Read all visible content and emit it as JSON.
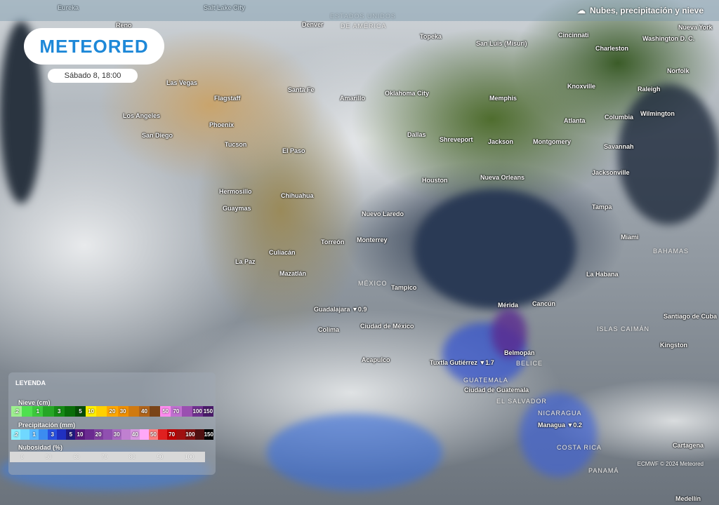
{
  "header": {
    "layer_title": "Nubes, precipitación y nieve",
    "layer_icon": "cloud-rain-icon"
  },
  "logo": "METEORED",
  "date": "Sábado 8, 18:00",
  "credit": "ECMWF © 2024 Meteored",
  "cities": [
    "Eureka",
    "Salt Lake City",
    "Denver",
    "Reno",
    "Topeka",
    "San Luis (Misuri)",
    "Cincinnati",
    "Washington D. C.",
    "Charleston",
    "Norfolk",
    "Nueva York",
    "Las Vegas",
    "Santa Fe",
    "Flagstaff",
    "Amarillo",
    "Oklahoma City",
    "Memphis",
    "Knoxville",
    "Raleigh",
    "Los Angeles",
    "Phoenix",
    "Atlanta",
    "Columbia",
    "Wilmington",
    "San Diego",
    "Dallas",
    "Shreveport",
    "Jackson",
    "Montgomery",
    "Savannah",
    "Tucson",
    "El Paso",
    "Jacksonville",
    "Houston",
    "Nueva Orleans",
    "Hermosillo",
    "Chihuahua",
    "Guaymas",
    "Nuevo Laredo",
    "Tampa",
    "Torreón",
    "Monterrey",
    "Miami",
    "Culiacán",
    "La Paz",
    "Mazatlán",
    "Tampico",
    "La Habana",
    "Mérida",
    "Cancún",
    "Guadalajara ▼0.9",
    "Santiago de Cuba",
    "Colima",
    "Ciudad de México",
    "Kingston",
    "Belmopán",
    "Acapulco",
    "Tuxtla Gutiérrez ▼1.7",
    "Ciudad de Guatemala",
    "Managua ▼0.2",
    "Cartagena",
    "Medellín"
  ],
  "countries": [
    "ESTADOS UNIDOS",
    "DE AMÉRICA",
    "MÉXICO",
    "ISLAS CAIMÁN",
    "BELICE",
    "GUATEMALA",
    "EL SALVADOR",
    "NICARAGUA",
    "COSTA RICA",
    "PANAMÁ",
    "BAHAMAS"
  ],
  "legend": {
    "title": "LEYENDA",
    "snow": {
      "label": "Nieve (cm)",
      "cells": [
        ".2",
        "",
        "1",
        "",
        "3",
        "",
        "5",
        "10",
        "",
        "20",
        "30",
        "",
        "40",
        "",
        "50",
        "70",
        "",
        "100",
        "150"
      ],
      "colors": [
        "#9df08f",
        "#4fe04f",
        "#3cc83c",
        "#26a626",
        "#158a15",
        "#0a6d0a",
        "#064e06",
        "#fff000",
        "#ffd000",
        "#ffa800",
        "#f09000",
        "#d07a10",
        "#b0641a",
        "#7a4418",
        "#ff8cf0",
        "#c070d0",
        "#9a50b0",
        "#703090",
        "#4a1a6a"
      ]
    },
    "precip": {
      "label": "Precipitación (mm)",
      "cells": [
        ".2",
        "",
        "1",
        "",
        "3",
        "",
        "5",
        "10",
        "",
        "20",
        "",
        "30",
        "",
        "40",
        "",
        "50",
        "",
        "70",
        "",
        "100",
        "",
        "150"
      ],
      "colors": [
        "#8ef0ff",
        "#70d8ff",
        "#58b8ff",
        "#3c8cf0",
        "#2850e0",
        "#2030c0",
        "#201a80",
        "#5a1a80",
        "#6a2a90",
        "#8040a0",
        "#9050b0",
        "#a868c0",
        "#c080d0",
        "#d898e0",
        "#ffa8f8",
        "#ff8080",
        "#e02020",
        "#c00000",
        "#a01010",
        "#801010",
        "#501010",
        "#000000"
      ]
    },
    "cloud": {
      "label": "Nubosidad (%)",
      "ticks": [
        "0",
        "50",
        "60",
        "70",
        "80",
        "90",
        "100"
      ]
    }
  }
}
